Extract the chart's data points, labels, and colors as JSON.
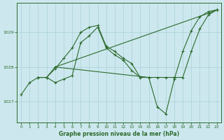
{
  "title": "Graphe pression niveau de la mer (hPa)",
  "bg_color": "#cce8ee",
  "line_color": "#2d6a2d",
  "grid_color": "#aacfd6",
  "xlim": [
    -0.5,
    23.5
  ],
  "ylim": [
    1026.4,
    1029.85
  ],
  "yticks": [
    1027,
    1028,
    1029
  ],
  "xticks": [
    0,
    1,
    2,
    3,
    4,
    5,
    6,
    7,
    8,
    9,
    10,
    11,
    12,
    13,
    14,
    15,
    16,
    17,
    18,
    19,
    20,
    21,
    22,
    23
  ],
  "series": [
    {
      "x": [
        0,
        1,
        2,
        3,
        4,
        5,
        6,
        7,
        8,
        9,
        10,
        11,
        12,
        13,
        14,
        15,
        16,
        17,
        18,
        19,
        20,
        21,
        22,
        23
      ],
      "y": [
        1027.2,
        1027.55,
        1027.7,
        1027.7,
        1027.55,
        1027.65,
        1027.75,
        1028.7,
        1028.9,
        1029.15,
        1028.55,
        1028.35,
        1028.2,
        1027.9,
        1027.7,
        1027.7,
        1026.85,
        1026.65,
        1027.65,
        1028.45,
        1029.05,
        1029.45,
        1029.6,
        1029.65
      ]
    },
    {
      "x": [
        2,
        3,
        4,
        5,
        6,
        7,
        8,
        9,
        10,
        11,
        12,
        13,
        14
      ],
      "y": [
        1027.7,
        1027.7,
        1027.95,
        1028.25,
        1028.55,
        1029.0,
        1029.15,
        1029.2,
        1028.6,
        1028.45,
        1028.25,
        1028.1,
        1027.7
      ]
    },
    {
      "x": [
        2,
        3,
        4,
        22,
        23
      ],
      "y": [
        1027.7,
        1027.7,
        1028.0,
        1029.55,
        1029.65
      ]
    },
    {
      "x": [
        4,
        15,
        16,
        17,
        18,
        19,
        20,
        21,
        22,
        23
      ],
      "y": [
        1028.0,
        1027.7,
        1027.7,
        1027.7,
        1027.7,
        1027.7,
        1028.45,
        1029.1,
        1029.5,
        1029.65
      ]
    }
  ]
}
